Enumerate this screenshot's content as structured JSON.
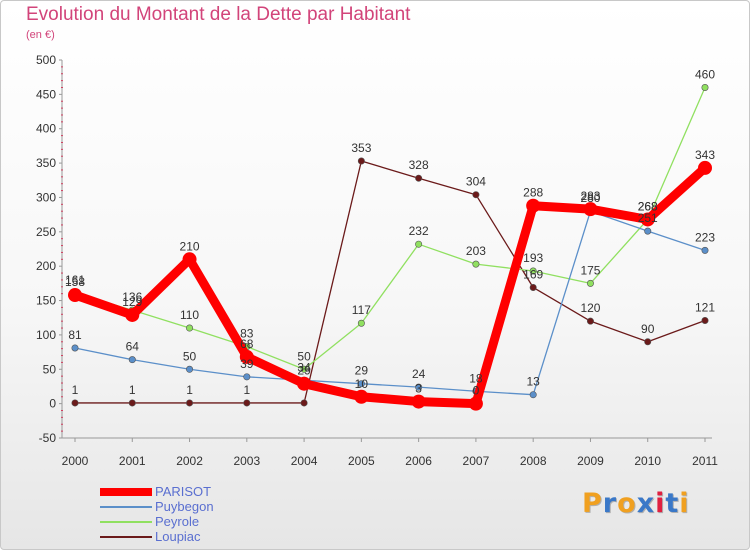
{
  "chart_data": {
    "type": "line",
    "title": "Evolution du Montant de la Dette par Habitant",
    "subtitle": "(en €)",
    "xlabel": "",
    "ylabel": "",
    "categories": [
      "2000",
      "2001",
      "2002",
      "2003",
      "2004",
      "2005",
      "2006",
      "2007",
      "2008",
      "2009",
      "2010",
      "2011"
    ],
    "ylim": [
      -50,
      500
    ],
    "yticks": [
      -50,
      0,
      50,
      100,
      150,
      200,
      250,
      300,
      350,
      400,
      450,
      500
    ],
    "grid": false,
    "legend_position": "bottom-left",
    "series": [
      {
        "name": "PARISOT",
        "color": "#ff0000",
        "values": [
          158,
          129,
          210,
          68,
          29,
          10,
          3,
          0,
          288,
          283,
          268,
          343
        ],
        "labels": [
          "158",
          "129",
          "210",
          "68",
          "29",
          "10",
          "3",
          "0",
          "288",
          "283",
          "268",
          "343"
        ]
      },
      {
        "name": "Puybegon",
        "color": "#5b8fc9",
        "values": [
          81,
          64,
          50,
          39,
          34,
          29,
          24,
          18,
          13,
          280,
          251,
          223
        ],
        "labels": [
          "81",
          "64",
          "50",
          "39",
          "34",
          "29",
          "24",
          "18",
          "13",
          "280",
          "251",
          "223"
        ]
      },
      {
        "name": "Peyrole",
        "color": "#90e060",
        "values": [
          161,
          136,
          110,
          83,
          50,
          117,
          232,
          203,
          193,
          175,
          268,
          460
        ],
        "labels": [
          "161",
          "136",
          "110",
          "83",
          "50",
          "117",
          "232",
          "203",
          "193",
          "175",
          "268",
          "460"
        ]
      },
      {
        "name": "Loupiac",
        "color": "#6b1a1a",
        "values": [
          1,
          1,
          1,
          1,
          1,
          353,
          328,
          304,
          169,
          120,
          90,
          121
        ],
        "labels": [
          "1",
          "1",
          "1",
          "1",
          "",
          "353",
          "328",
          "304",
          "169",
          "120",
          "90",
          "121"
        ]
      }
    ]
  },
  "legend": [
    "PARISOT",
    "Puybegon",
    "Peyrole",
    "Loupiac"
  ],
  "brand": {
    "letters": [
      "P",
      "r",
      "o",
      "x",
      "i",
      "t",
      "i"
    ],
    "colors": [
      "#f0a020",
      "#3a78c8",
      "#f0a020",
      "#3a78c8",
      "#e02040",
      "#3a78c8",
      "#f0a020"
    ]
  }
}
